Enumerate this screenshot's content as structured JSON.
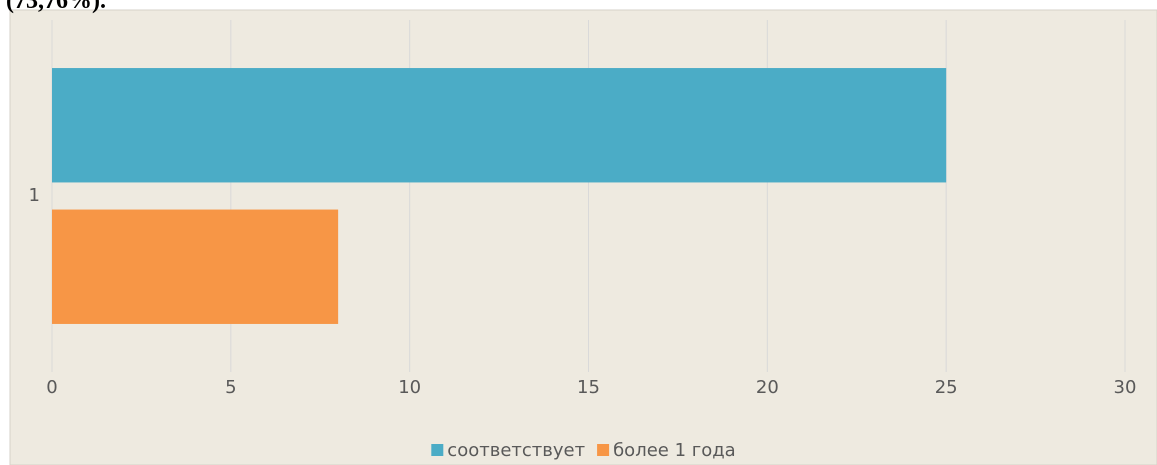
{
  "text_above": "(73,76%).",
  "chart_data": {
    "type": "bar",
    "orientation": "horizontal",
    "categories": [
      "1"
    ],
    "series": [
      {
        "name": "соответствует",
        "color": "#4bacc6",
        "values": [
          25
        ]
      },
      {
        "name": "более 1 года",
        "color": "#f79646",
        "values": [
          8
        ]
      }
    ],
    "xlim": [
      0,
      30
    ],
    "xticks": [
      0,
      5,
      10,
      15,
      20,
      25,
      30
    ],
    "grid": true,
    "legend": "bottom"
  }
}
